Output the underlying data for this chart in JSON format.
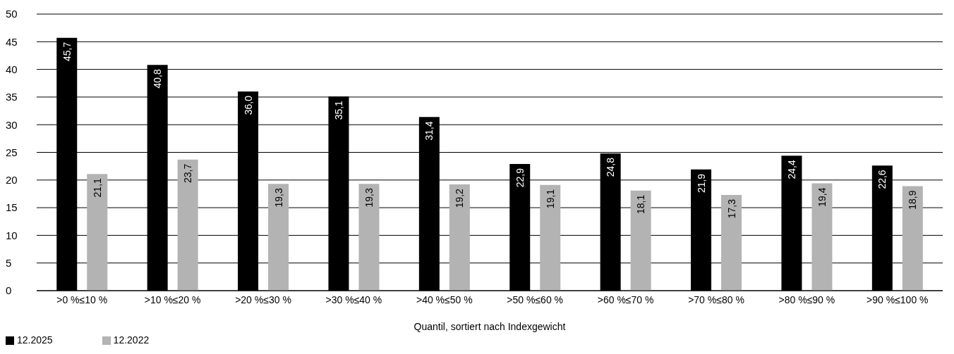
{
  "chart_data": {
    "type": "bar",
    "xlabel": "Quantil, sortiert nach Indexgewicht",
    "categories": [
      ">0 %≤10 %",
      ">10 %≤20 %",
      ">20 %≤30 %",
      ">30 %≤40 %",
      ">40 %≤50 %",
      ">50 %≤60 %",
      ">60 %≤70 %",
      ">70 %≤80 %",
      ">80 %≤90 %",
      ">90 %≤100 %"
    ],
    "series": [
      {
        "name": "12.2025",
        "color": "#000000",
        "values": [
          45.7,
          40.8,
          36.0,
          35.1,
          31.4,
          22.9,
          24.8,
          21.9,
          24.4,
          22.6
        ],
        "value_labels": [
          "45,7",
          "40,8",
          "36,0",
          "35,1",
          "31,4",
          "22,9",
          "24,8",
          "21,9",
          "24,4",
          "22,6"
        ]
      },
      {
        "name": "12.2022",
        "color": "#b3b3b3",
        "values": [
          21.1,
          23.7,
          19.3,
          19.3,
          19.2,
          19.1,
          18.1,
          17.3,
          19.4,
          18.9
        ],
        "value_labels": [
          "21,1",
          "23,7",
          "19,3",
          "19,3",
          "19,2",
          "19,1",
          "18,1",
          "17,3",
          "19,4",
          "18,9"
        ]
      }
    ],
    "ylim": [
      0,
      50
    ],
    "yticks": [
      0,
      5,
      10,
      15,
      20,
      25,
      30,
      35,
      40,
      45,
      50
    ],
    "grid": "y",
    "legend": "bottom"
  }
}
